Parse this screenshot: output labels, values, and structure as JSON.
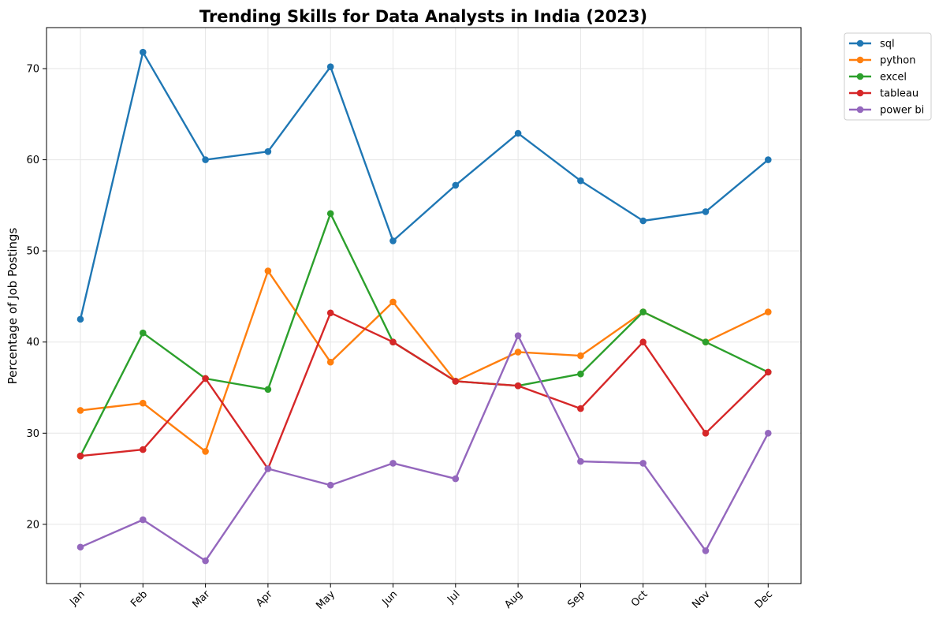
{
  "chart_data": {
    "type": "line",
    "title": "Trending Skills for Data Analysts in India (2023)",
    "xlabel": "",
    "ylabel": "Percentage of Job Postings",
    "categories": [
      "Jan",
      "Feb",
      "Mar",
      "Apr",
      "May",
      "Jun",
      "Jul",
      "Aug",
      "Sep",
      "Oct",
      "Nov",
      "Dec"
    ],
    "ylim": [
      13.5,
      74.5
    ],
    "yticks": [
      20,
      30,
      40,
      50,
      60,
      70
    ],
    "grid": true,
    "legend_position": "outside top-right",
    "series": [
      {
        "name": "sql",
        "color": "#1f77b4",
        "values": [
          42.5,
          71.8,
          60.0,
          60.9,
          70.2,
          51.1,
          57.2,
          62.9,
          57.7,
          53.3,
          54.3,
          60.0
        ]
      },
      {
        "name": "python",
        "color": "#ff7f0e",
        "values": [
          32.5,
          33.3,
          28.0,
          47.8,
          37.8,
          44.4,
          35.7,
          38.9,
          38.5,
          43.3,
          40.0,
          43.3
        ]
      },
      {
        "name": "excel",
        "color": "#2ca02c",
        "values": [
          27.5,
          41.0,
          36.0,
          34.8,
          54.1,
          40.0,
          35.7,
          35.2,
          36.5,
          43.3,
          40.0,
          36.7
        ]
      },
      {
        "name": "tableau",
        "color": "#d62728",
        "values": [
          27.5,
          28.2,
          36.0,
          26.1,
          43.2,
          40.0,
          35.7,
          35.2,
          32.7,
          40.0,
          30.0,
          36.7
        ]
      },
      {
        "name": "power bi",
        "color": "#9467bd",
        "values": [
          17.5,
          20.5,
          16.0,
          26.1,
          24.3,
          26.7,
          25.0,
          40.7,
          26.9,
          26.7,
          17.1,
          30.0
        ]
      }
    ]
  }
}
